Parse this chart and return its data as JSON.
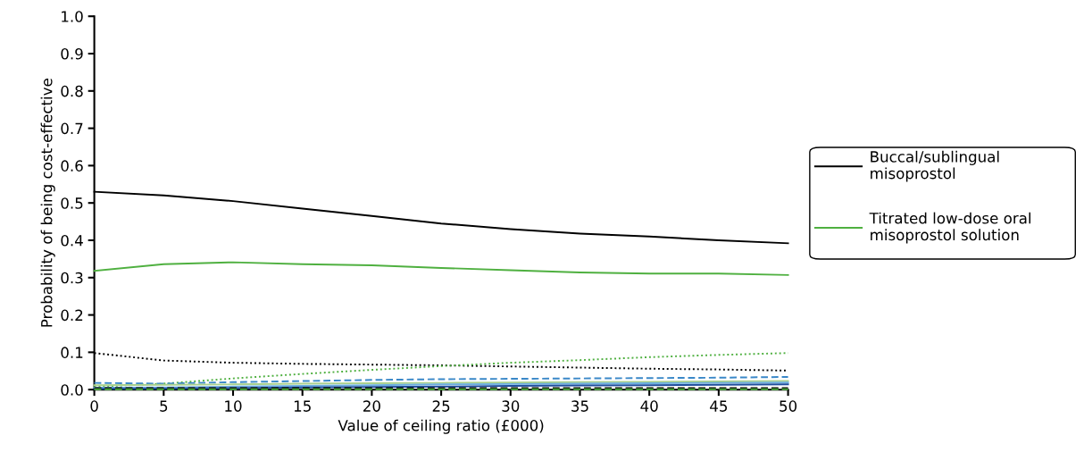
{
  "chart_data": {
    "type": "line",
    "xlabel": "Value of ceiling ratio (£000)",
    "ylabel": "Probability of being cost-effective",
    "xlim": [
      0,
      50
    ],
    "ylim": [
      0,
      1.0
    ],
    "xticks": [
      0,
      5,
      10,
      15,
      20,
      25,
      30,
      35,
      40,
      45,
      50
    ],
    "yticks": [
      {
        "value": 0,
        "label": "0.0"
      },
      0.1,
      0.2,
      0.3,
      0.4,
      0.5,
      0.6,
      0.7,
      0.8,
      0.9,
      {
        "value": 1.0,
        "label": "1.0"
      }
    ],
    "x": [
      0,
      5,
      10,
      15,
      20,
      25,
      30,
      35,
      40,
      45,
      50
    ],
    "grid": false,
    "legend": "right",
    "marker": "none",
    "series": [
      {
        "name": "Buccal/sublingual misoprostol",
        "color": "#000000",
        "line_style": "solid",
        "values": [
          0.53,
          0.52,
          0.505,
          0.485,
          0.465,
          0.445,
          0.43,
          0.418,
          0.41,
          0.4,
          0.392
        ]
      },
      {
        "name": "Titrated low-dose oral misoprostol solution",
        "color": "#4fb040",
        "line_style": "solid",
        "values": [
          0.318,
          0.336,
          0.341,
          0.336,
          0.333,
          0.326,
          0.32,
          0.314,
          0.311,
          0.311,
          0.307
        ]
      },
      {
        "color": "#000000",
        "line_style": "dotted",
        "values": [
          0.098,
          0.078,
          0.072,
          0.069,
          0.067,
          0.065,
          0.062,
          0.059,
          0.056,
          0.054,
          0.051
        ]
      },
      {
        "color": "#4fb040",
        "line_style": "dotted",
        "values": [
          0.008,
          0.016,
          0.03,
          0.042,
          0.053,
          0.063,
          0.072,
          0.079,
          0.087,
          0.093,
          0.098
        ]
      },
      {
        "color": "#3a88c8",
        "line_style": "dashed",
        "values": [
          0.018,
          0.016,
          0.02,
          0.023,
          0.026,
          0.028,
          0.029,
          0.03,
          0.031,
          0.032,
          0.034
        ]
      },
      {
        "color": "#a8d08d",
        "line_style": "solid",
        "values": [
          0.012,
          0.013,
          0.014,
          0.016,
          0.017,
          0.018,
          0.019,
          0.02,
          0.021,
          0.022,
          0.023
        ]
      },
      {
        "color": "#6aaee0",
        "line_style": "solid",
        "values": [
          0.005,
          0.006,
          0.008,
          0.01,
          0.012,
          0.014,
          0.015,
          0.016,
          0.017,
          0.018,
          0.019
        ]
      },
      {
        "color": "#1f4e9c",
        "line_style": "solid",
        "values": [
          0.002,
          0.003,
          0.004,
          0.006,
          0.007,
          0.008,
          0.01,
          0.011,
          0.012,
          0.013,
          0.014
        ]
      },
      {
        "color": "#000000",
        "line_style": "dashed",
        "values": [
          0.004,
          0.004,
          0.004,
          0.004,
          0.004,
          0.004,
          0.004,
          0.004,
          0.004,
          0.004,
          0.004
        ]
      },
      {
        "color": "#4fb040",
        "line_style": "dashed",
        "values": [
          0.001,
          0.001,
          0.001,
          0.001,
          0.001,
          0.001,
          0.001,
          0.001,
          0.001,
          0.001,
          0.001
        ]
      }
    ]
  }
}
